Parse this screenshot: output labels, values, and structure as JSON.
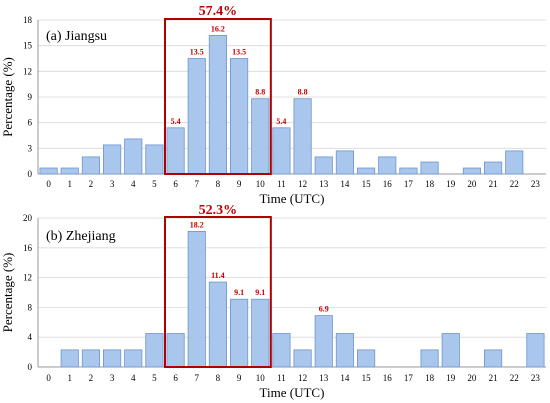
{
  "chart_data": [
    {
      "type": "bar",
      "panel_label": "(a) Jiangsu",
      "xlabel": "Time (UTC)",
      "ylabel": "Percentage (%)",
      "ylim": [
        0,
        18
      ],
      "yticks": [
        "0",
        "3",
        "6",
        "9",
        "12",
        "15",
        "18"
      ],
      "categories": [
        "0",
        "1",
        "2",
        "3",
        "4",
        "5",
        "6",
        "7",
        "8",
        "9",
        "10",
        "11",
        "12",
        "13",
        "14",
        "15",
        "16",
        "17",
        "18",
        "19",
        "20",
        "21",
        "22",
        "23"
      ],
      "values": [
        0.7,
        0.7,
        2.0,
        3.4,
        4.1,
        3.4,
        5.4,
        13.5,
        16.2,
        13.5,
        8.8,
        5.4,
        8.8,
        2.0,
        2.7,
        0.7,
        2.0,
        0.7,
        1.4,
        0,
        0.7,
        1.4,
        2.7,
        0
      ],
      "data_labels": {
        "6": "5.4",
        "7": "13.5",
        "8": "16.2",
        "9": "13.5",
        "10": "8.8",
        "11": "5.4",
        "12": "8.8"
      },
      "highlight": {
        "range": [
          6,
          10
        ],
        "label": "57.4%"
      },
      "grid": true,
      "colors": {
        "bar": "#a9c6ec",
        "bar_edge": "#6f95cf",
        "highlight_box": "#b00000",
        "label": "#c00000",
        "grid": "#d9d9d9"
      }
    },
    {
      "type": "bar",
      "panel_label": "(b) Zhejiang",
      "xlabel": "Time (UTC)",
      "ylabel": "Percentage (%)",
      "ylim": [
        0,
        20
      ],
      "yticks": [
        "0",
        "4",
        "8",
        "12",
        "16",
        "20"
      ],
      "categories": [
        "0",
        "1",
        "2",
        "3",
        "4",
        "5",
        "6",
        "7",
        "8",
        "9",
        "10",
        "11",
        "12",
        "13",
        "14",
        "15",
        "16",
        "17",
        "18",
        "19",
        "20",
        "21",
        "22",
        "23"
      ],
      "values": [
        0,
        2.3,
        2.3,
        2.3,
        2.3,
        4.5,
        4.5,
        18.2,
        11.4,
        9.1,
        9.1,
        4.5,
        2.3,
        6.9,
        4.5,
        2.3,
        0,
        0,
        2.3,
        4.5,
        0,
        2.3,
        0,
        4.5
      ],
      "data_labels": {
        "7": "18.2",
        "8": "11.4",
        "9": "9.1",
        "10": "9.1",
        "13": "6.9"
      },
      "highlight": {
        "range": [
          6,
          10
        ],
        "label": "52.3%"
      },
      "grid": true,
      "colors": {
        "bar": "#a9c6ec",
        "bar_edge": "#6f95cf",
        "highlight_box": "#b00000",
        "label": "#c00000",
        "grid": "#d9d9d9"
      }
    }
  ]
}
